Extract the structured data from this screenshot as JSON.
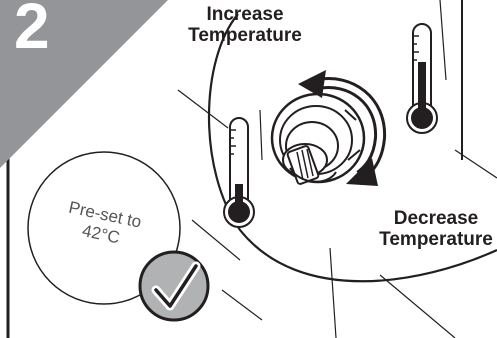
{
  "step": {
    "number": "2"
  },
  "labels": {
    "increase_line1": "Increase",
    "increase_line2": "Temperature",
    "decrease_line1": "Decrease",
    "decrease_line2": "Temperature"
  },
  "preset": {
    "line1": "Pre-set to",
    "line2": "42°C"
  },
  "colors": {
    "banner_gray": "#939598",
    "ink": "#231f20",
    "badge_gray": "#b0b2b4"
  }
}
